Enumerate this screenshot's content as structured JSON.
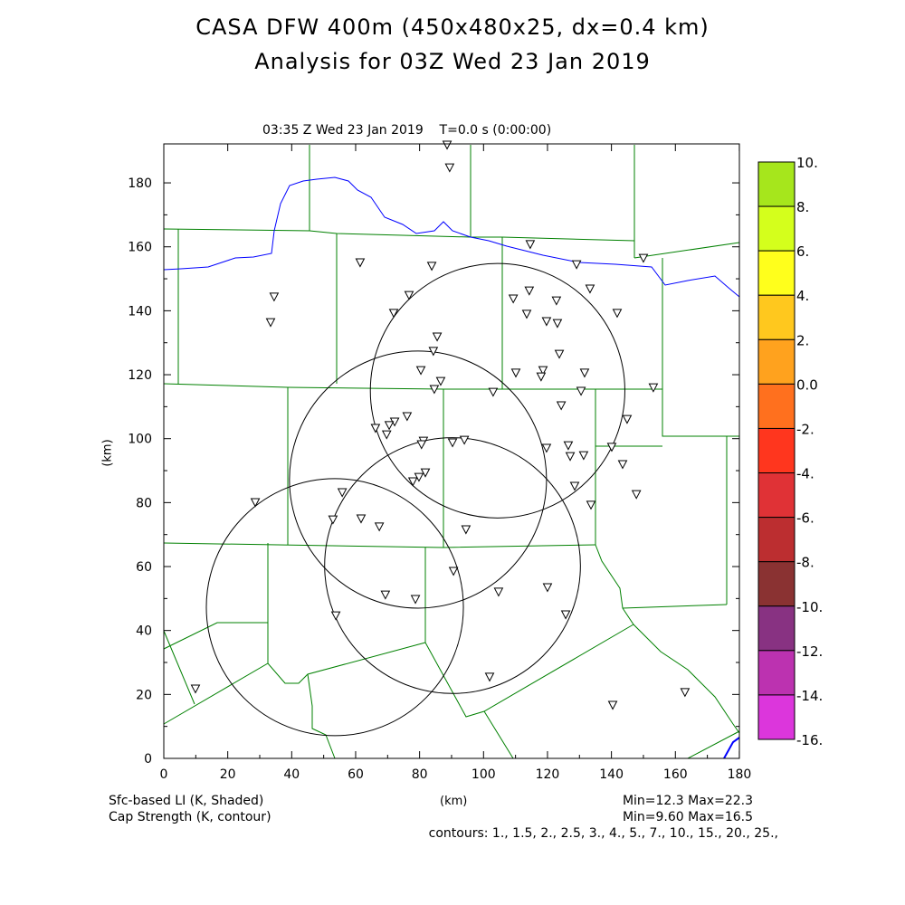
{
  "title_line1": "CASA DFW 400m (450x480x25, dx=0.4 km)",
  "title_line2": "Analysis for 03Z Wed 23 Jan 2019",
  "subtitle": "03:35 Z Wed 23 Jan 2019    T=0.0 s (0:00:00)",
  "footer": {
    "shaded_label": "Sfc-based LI (K, Shaded)",
    "contour_label": "Cap Strength (K, contour)",
    "xunits": "(km)",
    "shaded_minmax": "Min=12.3 Max=22.3",
    "contour_minmax": "Min=9.60 Max=16.5",
    "contours": "contours: 1., 1.5, 2., 2.5, 3., 4., 5., 7., 10., 15., 20., 25.,"
  },
  "chart_data": {
    "type": "map",
    "xlabel": "(km)",
    "ylabel": "(km)",
    "xlim": [
      0,
      180
    ],
    "ylim": [
      0,
      192
    ],
    "xticks": [
      "0",
      "20",
      "40",
      "60",
      "80",
      "100",
      "120",
      "140",
      "160",
      "180"
    ],
    "yticks": [
      "0",
      "20",
      "40",
      "60",
      "80",
      "100",
      "120",
      "140",
      "160",
      "180"
    ],
    "radar_rings": [
      {
        "center": [
          104.4,
          115.0
        ],
        "radius": 39.8
      },
      {
        "center": [
          79.5,
          87.2
        ],
        "radius": 40.2
      },
      {
        "center": [
          90.3,
          60.3
        ],
        "radius": 40.0
      },
      {
        "center": [
          53.5,
          47.3
        ],
        "radius": 40.2
      }
    ],
    "stations": [
      [
        88.6,
        191.9
      ],
      [
        89.4,
        184.8
      ],
      [
        114.6,
        160.8
      ],
      [
        61.4,
        155.1
      ],
      [
        83.8,
        154
      ],
      [
        129.1,
        154.5
      ],
      [
        150,
        156.5
      ],
      [
        34.5,
        144.4
      ],
      [
        33.4,
        136.4
      ],
      [
        76.7,
        144.9
      ],
      [
        71.9,
        139.3
      ],
      [
        109.3,
        143.8
      ],
      [
        114.3,
        146.3
      ],
      [
        122.8,
        143.2
      ],
      [
        133.3,
        146.9
      ],
      [
        141.8,
        139.3
      ],
      [
        113.5,
        139
      ],
      [
        119.7,
        136.7
      ],
      [
        123.1,
        136.1
      ],
      [
        85.5,
        131.9
      ],
      [
        84.3,
        127.4
      ],
      [
        123.7,
        126.5
      ],
      [
        110.1,
        120.6
      ],
      [
        118.6,
        121.4
      ],
      [
        118,
        119.4
      ],
      [
        131.6,
        120.6
      ],
      [
        80.4,
        121.4
      ],
      [
        86.6,
        118
      ],
      [
        84.6,
        115.5
      ],
      [
        103,
        114.6
      ],
      [
        130.5,
        114.9
      ],
      [
        153.1,
        116
      ],
      [
        124.3,
        110.4
      ],
      [
        144.9,
        106.1
      ],
      [
        72.2,
        105.3
      ],
      [
        70.5,
        104.2
      ],
      [
        76.1,
        107
      ],
      [
        66.2,
        103.3
      ],
      [
        69.7,
        101.3
      ],
      [
        81.2,
        99.3
      ],
      [
        80.6,
        98.2
      ],
      [
        90.3,
        98.8
      ],
      [
        94,
        99.6
      ],
      [
        119.7,
        97.1
      ],
      [
        126.5,
        97.9
      ],
      [
        140.1,
        97.4
      ],
      [
        127.1,
        94.5
      ],
      [
        131.3,
        94.8
      ],
      [
        143.5,
        92
      ],
      [
        81.8,
        89.4
      ],
      [
        79.8,
        88
      ],
      [
        77.9,
        86.6
      ],
      [
        147.8,
        82.6
      ],
      [
        55.8,
        83.2
      ],
      [
        28.6,
        80.1
      ],
      [
        128.5,
        85.2
      ],
      [
        133.6,
        79.3
      ],
      [
        52.9,
        74.7
      ],
      [
        61.7,
        75
      ],
      [
        67.4,
        72.5
      ],
      [
        94.5,
        71.6
      ],
      [
        90.6,
        58.6
      ],
      [
        104.7,
        52.1
      ],
      [
        120,
        53.5
      ],
      [
        69.3,
        51.2
      ],
      [
        78.7,
        49.8
      ],
      [
        125.7,
        45
      ],
      [
        53.8,
        44.7
      ],
      [
        101.9,
        25.5
      ],
      [
        9.9,
        21.8
      ],
      [
        140.4,
        16.7
      ],
      [
        163,
        20.7
      ]
    ],
    "colorbar": {
      "labels": [
        "10.",
        "8.",
        "6.",
        "4.",
        "2.",
        "0.0",
        "-2.",
        "-4.",
        "-6.",
        "-8.",
        "-10.",
        "-12.",
        "-14.",
        "-16."
      ],
      "colors": [
        "#a6e61c",
        "#d4ff1c",
        "#ffff1c",
        "#ffc81e",
        "#ffa21e",
        "#ff701e",
        "#ff361e",
        "#e03236",
        "#bc2e30",
        "#8a3232",
        "#883282",
        "#bc32b0",
        "#dc36dc"
      ]
    },
    "colors": {
      "county": "#008000",
      "water": "#0000ff",
      "ring": "#000000"
    }
  }
}
